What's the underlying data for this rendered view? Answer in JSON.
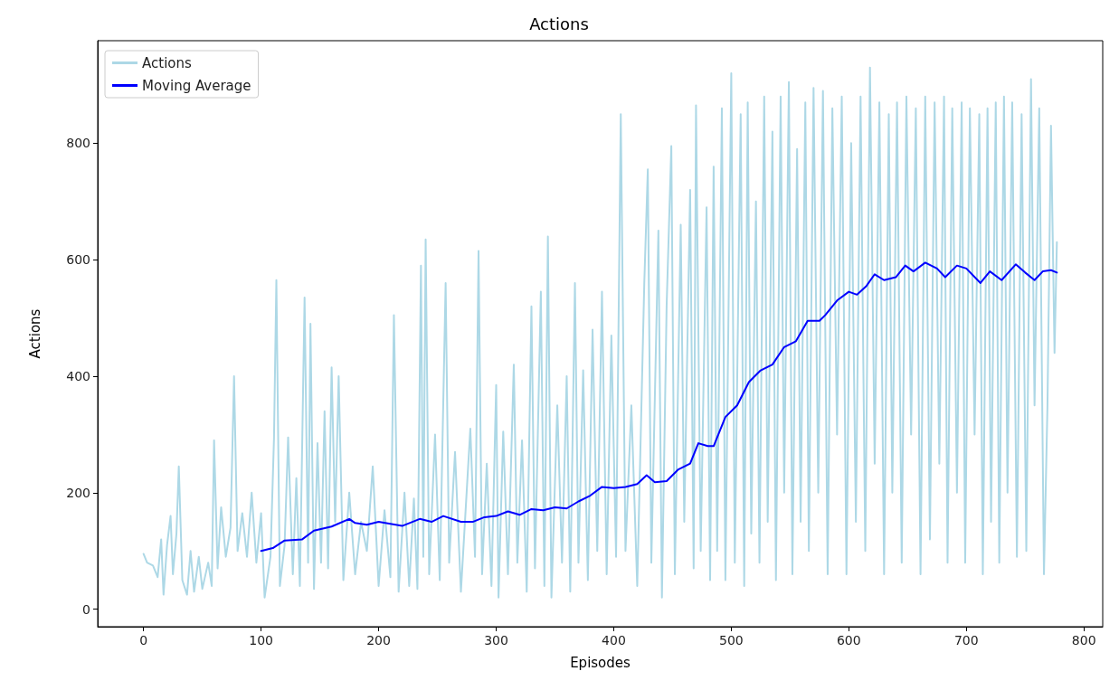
{
  "chart_data": {
    "type": "line",
    "title": "Actions",
    "xlabel": "Episodes",
    "ylabel": "Actions",
    "xlim": [
      -39,
      816
    ],
    "ylim": [
      -30,
      976
    ],
    "xticks": [
      0,
      100,
      200,
      300,
      400,
      500,
      600,
      700,
      800
    ],
    "yticks": [
      0,
      200,
      400,
      600,
      800
    ],
    "grid": false,
    "legend": "top left",
    "marker": "none",
    "line_style": "solid",
    "series": [
      {
        "name": "Actions",
        "color": "#add8e6",
        "x": [
          0,
          3,
          8,
          12,
          15,
          17,
          20,
          23,
          25,
          28,
          30,
          33,
          37,
          40,
          43,
          47,
          50,
          55,
          58,
          60,
          63,
          66,
          70,
          74,
          77,
          80,
          84,
          88,
          92,
          96,
          100,
          103,
          108,
          111,
          113,
          116,
          120,
          123,
          127,
          130,
          133,
          137,
          140,
          142,
          145,
          148,
          151,
          154,
          157,
          160,
          163,
          166,
          170,
          175,
          180,
          185,
          190,
          195,
          200,
          205,
          210,
          213,
          217,
          222,
          226,
          230,
          233,
          236,
          238,
          240,
          243,
          248,
          252,
          257,
          260,
          265,
          270,
          278,
          282,
          285,
          288,
          292,
          296,
          300,
          302,
          306,
          310,
          315,
          318,
          322,
          326,
          330,
          333,
          338,
          341,
          344,
          347,
          352,
          356,
          360,
          363,
          367,
          370,
          374,
          378,
          382,
          386,
          390,
          394,
          398,
          402,
          406,
          410,
          415,
          420,
          426,
          429,
          432,
          438,
          441,
          445,
          449,
          452,
          457,
          460,
          465,
          468,
          470,
          474,
          479,
          482,
          485,
          488,
          492,
          495,
          500,
          503,
          508,
          511,
          514,
          517,
          521,
          524,
          528,
          531,
          535,
          538,
          542,
          545,
          549,
          552,
          556,
          559,
          563,
          566,
          570,
          574,
          578,
          582,
          586,
          590,
          594,
          598,
          602,
          606,
          610,
          614,
          618,
          622,
          626,
          630,
          634,
          637,
          641,
          645,
          649,
          653,
          657,
          661,
          665,
          669,
          673,
          677,
          681,
          684,
          688,
          692,
          696,
          699,
          703,
          707,
          711,
          714,
          718,
          721,
          725,
          728,
          732,
          735,
          739,
          743,
          747,
          751,
          755,
          758,
          762,
          766,
          769,
          772,
          775,
          777
        ],
        "values": [
          95,
          80,
          75,
          55,
          120,
          25,
          110,
          160,
          60,
          130,
          245,
          50,
          25,
          100,
          30,
          90,
          35,
          80,
          40,
          290,
          70,
          175,
          90,
          140,
          400,
          100,
          165,
          90,
          200,
          80,
          165,
          20,
          90,
          295,
          565,
          40,
          110,
          295,
          60,
          225,
          40,
          535,
          80,
          490,
          35,
          285,
          80,
          340,
          70,
          415,
          150,
          400,
          50,
          200,
          60,
          150,
          100,
          245,
          40,
          170,
          55,
          505,
          30,
          200,
          40,
          190,
          35,
          590,
          90,
          635,
          60,
          300,
          50,
          560,
          80,
          270,
          30,
          310,
          90,
          615,
          60,
          250,
          40,
          385,
          20,
          305,
          60,
          420,
          80,
          290,
          30,
          520,
          70,
          545,
          40,
          640,
          20,
          350,
          80,
          400,
          30,
          560,
          80,
          410,
          50,
          480,
          100,
          545,
          60,
          470,
          90,
          850,
          100,
          350,
          40,
          560,
          755,
          80,
          650,
          20,
          520,
          795,
          60,
          660,
          150,
          720,
          70,
          865,
          100,
          690,
          50,
          760,
          100,
          860,
          50,
          920,
          80,
          850,
          40,
          870,
          130,
          700,
          80,
          880,
          150,
          820,
          50,
          880,
          200,
          905,
          60,
          790,
          150,
          870,
          100,
          895,
          200,
          890,
          60,
          860,
          300,
          880,
          60,
          800,
          150,
          880,
          100,
          930,
          250,
          870,
          60,
          850,
          200,
          870,
          80,
          880,
          300,
          860,
          60,
          880,
          120,
          870,
          250,
          880,
          80,
          860,
          200,
          870,
          80,
          860,
          300,
          850,
          60,
          860,
          150,
          870,
          80,
          880,
          200,
          870,
          90,
          850,
          100,
          910,
          350,
          860,
          60,
          350,
          830,
          440,
          630
        ]
      },
      {
        "name": "Moving Average",
        "color": "#0000ff",
        "x": [
          100,
          110,
          120,
          135,
          145,
          160,
          175,
          180,
          190,
          200,
          220,
          235,
          245,
          255,
          270,
          280,
          290,
          300,
          310,
          320,
          330,
          340,
          350,
          360,
          370,
          380,
          390,
          400,
          410,
          420,
          428,
          435,
          445,
          455,
          465,
          472,
          480,
          485,
          495,
          505,
          515,
          525,
          535,
          545,
          555,
          565,
          575,
          580,
          590,
          600,
          607,
          615,
          622,
          630,
          640,
          648,
          655,
          665,
          675,
          682,
          692,
          700,
          712,
          720,
          730,
          742,
          750,
          758,
          765,
          772,
          777
        ],
        "values": [
          100,
          105,
          118,
          120,
          135,
          142,
          155,
          148,
          145,
          150,
          143,
          155,
          150,
          160,
          150,
          150,
          158,
          160,
          168,
          162,
          172,
          170,
          175,
          173,
          185,
          195,
          210,
          208,
          210,
          215,
          230,
          218,
          220,
          240,
          250,
          285,
          280,
          280,
          330,
          350,
          390,
          410,
          420,
          450,
          460,
          495,
          495,
          505,
          530,
          545,
          540,
          555,
          575,
          565,
          570,
          590,
          580,
          595,
          585,
          570,
          590,
          585,
          560,
          580,
          565,
          592,
          578,
          565,
          580,
          582,
          578
        ]
      }
    ]
  }
}
